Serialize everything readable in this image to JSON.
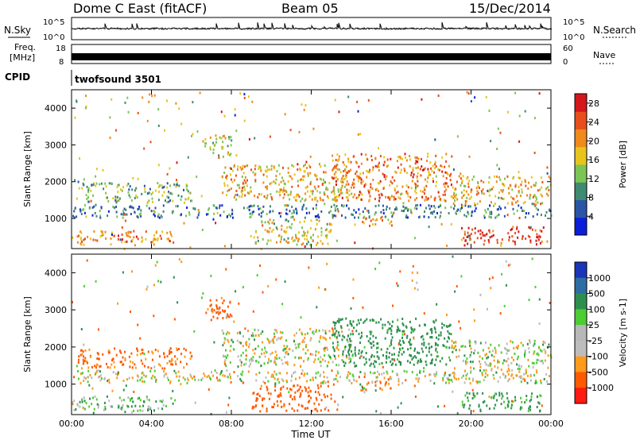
{
  "header": {
    "station": "Dome C East (fitACF)",
    "beam": "Beam 05",
    "date": "15/Dec/2014"
  },
  "top_panels": {
    "nsky_label": "N.Sky",
    "nsky_tick_top": "10^5",
    "nsky_tick_bottom": "10^0",
    "nsearch_label": "N.Search",
    "nsearch_tick_top": "10^5",
    "nsearch_tick_bottom": "10^0",
    "freq_label": "Freq.",
    "freq_unit": "[MHz]",
    "freq_tick_top": "18",
    "freq_tick_bottom": "8",
    "nave_label": "Nave",
    "nave_tick_top": "60",
    "nave_tick_bottom": "0",
    "cpid_label": "CPID",
    "cpid_value": "twofsound 3501"
  },
  "colors": {
    "power": [
      "#0b1fd8",
      "#2a55a6",
      "#3f8a72",
      "#7cc455",
      "#e8c51d",
      "#ef8a1b",
      "#e84f1d",
      "#d4171a"
    ],
    "velocity": [
      "#ff1a12",
      "#ff5a00",
      "#ff9a1a",
      "#bdbdbd",
      "#b8b8b8",
      "#4ccd33",
      "#2d8f4e",
      "#2c6ea3",
      "#1935b8"
    ]
  },
  "chart_data": [
    {
      "type": "heatmap",
      "title": "Power",
      "ylabel": "Slant Range [km]",
      "xlabel": "Time UT",
      "xlim": [
        "00:00",
        "24:00"
      ],
      "ylim": [
        180,
        4500
      ],
      "x_ticks": [
        "00:00",
        "04:00",
        "08:00",
        "12:00",
        "16:00",
        "20:00",
        "00:00"
      ],
      "y_ticks": [
        "1000",
        "2000",
        "3000",
        "4000"
      ],
      "colorbar_label": "Power [dB]",
      "colorbar_ticks": [
        "4",
        "8",
        "12",
        "16",
        "20",
        "24",
        "28"
      ],
      "colorbar_range": [
        0,
        30
      ],
      "scatter_bands": [
        {
          "t0": 0,
          "t1": 5.2,
          "r0": 300,
          "r1": 700,
          "level": 21
        },
        {
          "t0": 0,
          "t1": 24,
          "r0": 1050,
          "r1": 1400,
          "level": 8
        },
        {
          "t0": 0.3,
          "t1": 6,
          "r0": 1450,
          "r1": 2000,
          "level": 12
        },
        {
          "t0": 6.5,
          "t1": 8,
          "r0": 2700,
          "r1": 3300,
          "level": 15
        },
        {
          "t0": 7.5,
          "t1": 14,
          "r0": 1500,
          "r1": 2500,
          "level": 18
        },
        {
          "t0": 9,
          "t1": 13,
          "r0": 300,
          "r1": 1000,
          "level": 16
        },
        {
          "t0": 13,
          "t1": 19,
          "r0": 1500,
          "r1": 2800,
          "level": 22
        },
        {
          "t0": 14.5,
          "t1": 16,
          "r0": 800,
          "r1": 1100,
          "level": 20
        },
        {
          "t0": 19,
          "t1": 24,
          "r0": 1400,
          "r1": 2200,
          "level": 18
        },
        {
          "t0": 19.5,
          "t1": 23.5,
          "r0": 300,
          "r1": 800,
          "level": 27
        }
      ]
    },
    {
      "type": "heatmap",
      "title": "Velocity",
      "ylabel": "Slant Range [km]",
      "xlabel": "Time UT",
      "xlim": [
        "00:00",
        "24:00"
      ],
      "ylim": [
        180,
        4500
      ],
      "x_ticks": [
        "00:00",
        "04:00",
        "08:00",
        "12:00",
        "16:00",
        "20:00",
        "00:00"
      ],
      "y_ticks": [
        "1000",
        "2000",
        "3000",
        "4000"
      ],
      "colorbar_label": "Velocity [m s-1]",
      "colorbar_ticks": [
        "1000",
        "500",
        "100",
        "25",
        "-25",
        "-100",
        "-500",
        "-1000"
      ],
      "scatter_bands": [
        {
          "t0": 0,
          "t1": 5.2,
          "r0": 300,
          "r1": 700,
          "vel": 80
        },
        {
          "t0": 0,
          "t1": 24,
          "r0": 1050,
          "r1": 1400,
          "vel": 0
        },
        {
          "t0": 0.3,
          "t1": 6,
          "r0": 1450,
          "r1": 2000,
          "vel": -150
        },
        {
          "t0": 6.5,
          "t1": 8,
          "r0": 2700,
          "r1": 3300,
          "vel": -200
        },
        {
          "t0": 7.5,
          "t1": 14,
          "r0": 1500,
          "r1": 2500,
          "vel": 10
        },
        {
          "t0": 9,
          "t1": 13,
          "r0": 300,
          "r1": 1000,
          "vel": -300
        },
        {
          "t0": 13,
          "t1": 19,
          "r0": 1500,
          "r1": 2800,
          "vel": 200
        },
        {
          "t0": 14.5,
          "t1": 16,
          "r0": 800,
          "r1": 1100,
          "vel": -100
        },
        {
          "t0": 19,
          "t1": 24,
          "r0": 1400,
          "r1": 2200,
          "vel": 20
        },
        {
          "t0": 19.5,
          "t1": 23.5,
          "r0": 300,
          "r1": 800,
          "vel": 150
        }
      ]
    }
  ]
}
